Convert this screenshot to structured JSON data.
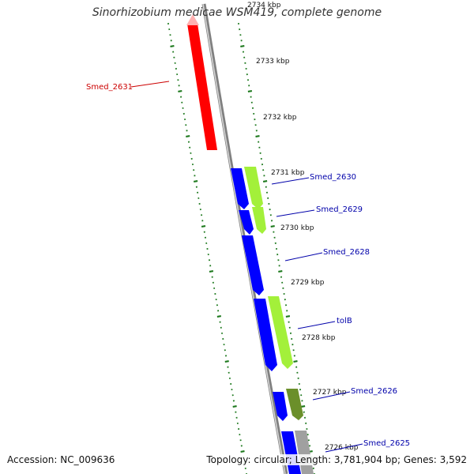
{
  "title": "Sinorhizobium medicae WSM419, complete genome",
  "footer": {
    "accession": "Accession: NC_009636",
    "summary": "Topology: circular; Length: 3,781,904 bp; Genes: 3,592"
  },
  "kbp_labels": [
    "2734 kbp",
    "2733 kbp",
    "2732 kbp",
    "2731 kbp",
    "2730 kbp",
    "2729 kbp",
    "2728 kbp",
    "2727 kbp",
    "2726 kbp"
  ],
  "genes": [
    {
      "label": "Smed_2631",
      "color": "#cc0000",
      "strand": "reverse"
    },
    {
      "label": "Smed_2630",
      "color": "#0000aa",
      "strand": "forward"
    },
    {
      "label": "Smed_2629",
      "color": "#0000aa",
      "strand": "forward"
    },
    {
      "label": "Smed_2628",
      "color": "#0000aa",
      "strand": "forward"
    },
    {
      "label": "tolB",
      "color": "#0000aa",
      "strand": "forward"
    },
    {
      "label": "Smed_2626",
      "color": "#0000aa",
      "strand": "forward"
    },
    {
      "label": "Smed_2625",
      "color": "#0000aa",
      "strand": "forward"
    }
  ],
  "colors": {
    "reverse_cds": "#ff0000",
    "forward_cds": "#0000ff",
    "feature_light": "#a3f03a",
    "feature_dark": "#6b8f2a",
    "backbone": "#808080",
    "tick": "#1f7a1f"
  }
}
